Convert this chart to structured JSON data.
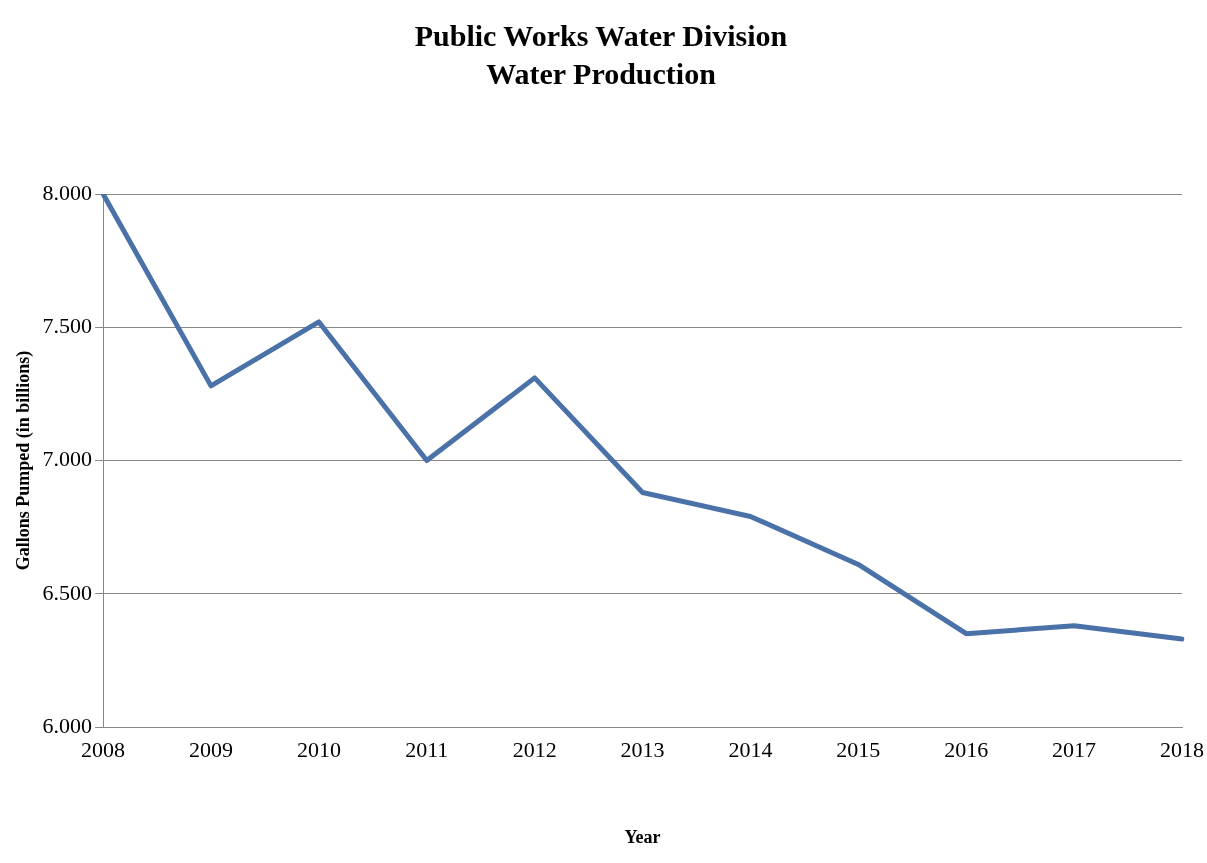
{
  "chart_data": {
    "type": "line",
    "title": "Public Works Water Division",
    "subtitle": "Water Production",
    "xlabel": "Year",
    "ylabel": "Gallons Pumped (in billions)",
    "categories": [
      "2008",
      "2009",
      "2010",
      "2011",
      "2012",
      "2013",
      "2014",
      "2015",
      "2016",
      "2017",
      "2018"
    ],
    "series": [
      {
        "color": "#4a72a8",
        "values": [
          8.0,
          7.28,
          7.52,
          7.0,
          7.31,
          6.88,
          6.79,
          6.61,
          6.35,
          6.38,
          6.33
        ]
      }
    ],
    "ylim": [
      6,
      8
    ],
    "yticks": [
      {
        "value": 6,
        "label": "6.000"
      },
      {
        "value": 6.5,
        "label": "6.500"
      },
      {
        "value": 7,
        "label": "7.000"
      },
      {
        "value": 7.5,
        "label": "7.500"
      },
      {
        "value": 8,
        "label": "8.000"
      }
    ],
    "grid": "y",
    "legend": false,
    "marker": "none",
    "line_style": "solid"
  }
}
